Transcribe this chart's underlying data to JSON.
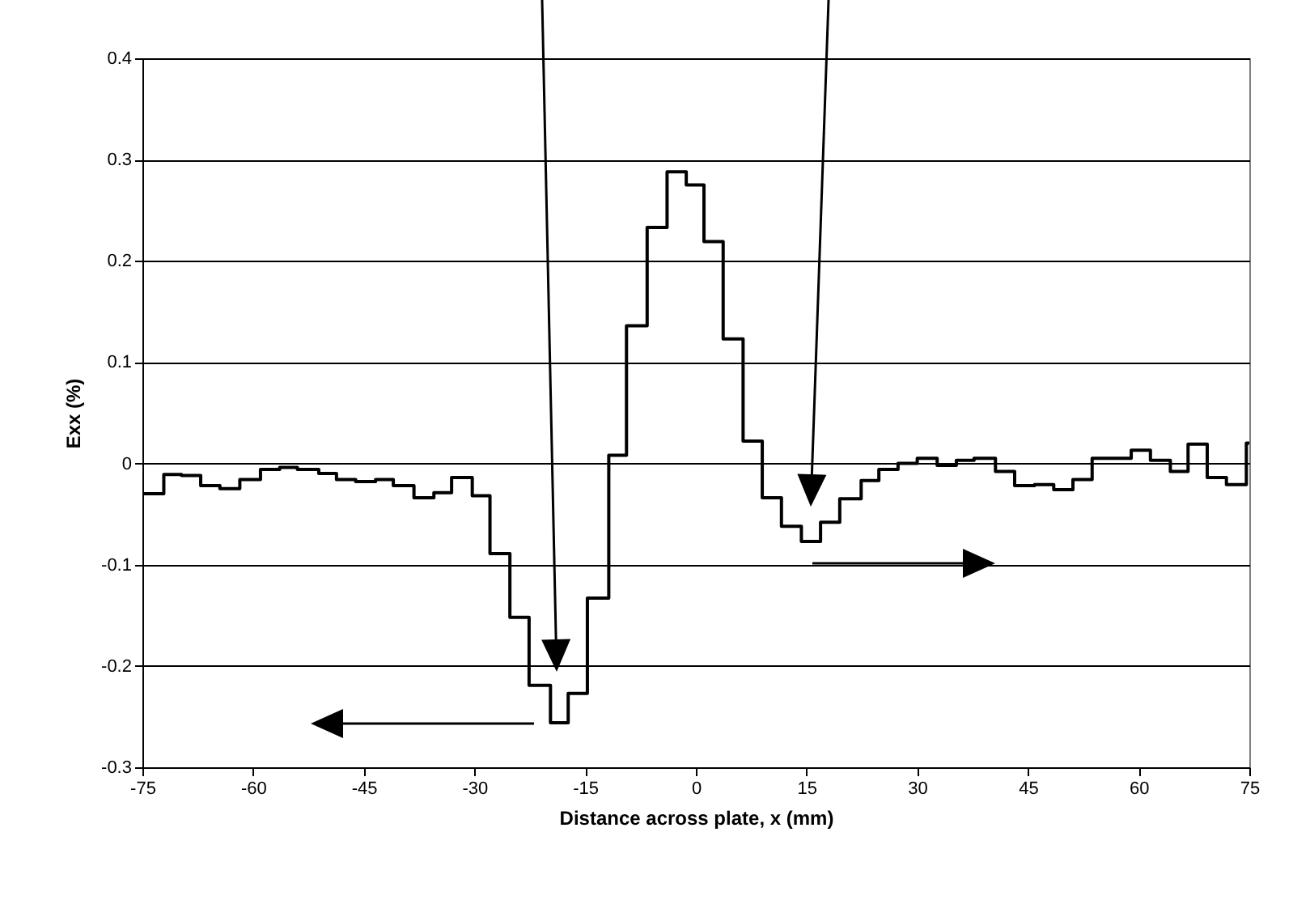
{
  "chart_data": {
    "type": "step",
    "xlabel": "Distance across plate, x (mm)",
    "ylabel": "Exx (%)",
    "x": [
      -75,
      -72.1,
      -69.7,
      -67.1,
      -64.5,
      -61.8,
      -59.0,
      -56.4,
      -54.0,
      -51.1,
      -48.7,
      -46.1,
      -43.4,
      -41.0,
      -38.2,
      -35.5,
      -33.1,
      -30.3,
      -27.9,
      -25.2,
      -22.6,
      -19.7,
      -17.3,
      -14.7,
      -11.8,
      -9.4,
      -6.6,
      -3.9,
      -1.3,
      1.1,
      3.7,
      6.4,
      9.0,
      11.6,
      14.3,
      16.9,
      19.5,
      22.4,
      24.8,
      27.4,
      30.0,
      32.7,
      35.3,
      37.7,
      40.6,
      43.2,
      45.9,
      48.5,
      51.1,
      53.7,
      56.4,
      59.0,
      61.6,
      64.3,
      66.7,
      69.3,
      71.9,
      74.6,
      75
    ],
    "series": [
      {
        "color": "#000000",
        "values": [
          -0.03,
          -0.011,
          -0.012,
          -0.022,
          -0.025,
          -0.016,
          -0.006,
          -0.004,
          -0.006,
          -0.01,
          -0.016,
          -0.018,
          -0.016,
          -0.022,
          -0.034,
          -0.029,
          -0.014,
          -0.032,
          -0.089,
          -0.152,
          -0.219,
          -0.256,
          -0.227,
          -0.133,
          0.008,
          0.136,
          0.233,
          0.288,
          0.275,
          0.219,
          0.123,
          0.022,
          -0.034,
          -0.062,
          -0.077,
          -0.058,
          -0.035,
          -0.017,
          -0.006,
          0.0,
          0.005,
          -0.002,
          0.003,
          0.005,
          -0.008,
          -0.022,
          -0.021,
          -0.026,
          -0.016,
          0.005,
          0.005,
          0.013,
          0.003,
          -0.008,
          0.019,
          -0.014,
          -0.021,
          0.02,
          0.02
        ]
      }
    ],
    "xlim": [
      -75,
      75
    ],
    "xticks": [
      -75,
      -60,
      -45,
      -30,
      -15,
      0,
      15,
      30,
      45,
      60,
      75
    ],
    "ylim": [
      -0.3,
      0.4
    ],
    "yticks": [
      -0.3,
      -0.2,
      -0.1,
      0,
      0.1,
      0.2,
      0.3,
      0.4
    ],
    "grid": "y",
    "marker": "none",
    "line_style": "solid"
  }
}
